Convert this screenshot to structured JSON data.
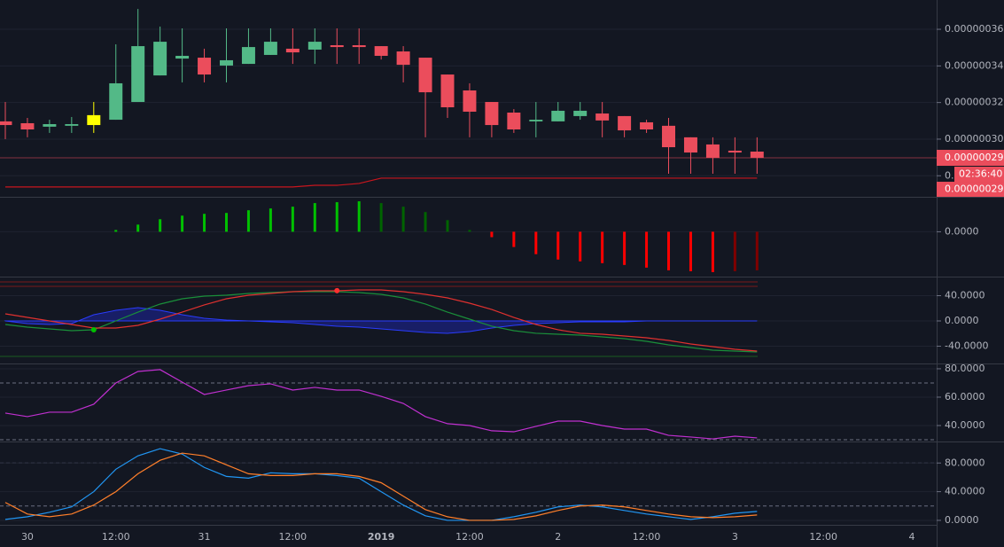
{
  "chart_data": [
    {
      "type": "candlestick",
      "x": [
        -3,
        0,
        3,
        6,
        9,
        12,
        15,
        18,
        21,
        24,
        27,
        30,
        33,
        36,
        39,
        42,
        45,
        48,
        51,
        54,
        57,
        60,
        63,
        66,
        69,
        72,
        75,
        78,
        81,
        84,
        87,
        90,
        93,
        96,
        99
      ],
      "open": [
        3.097e-07,
        3.087e-07,
        3.068e-07,
        3.073e-07,
        3.077e-07,
        3.106e-07,
        3.203e-07,
        3.348e-07,
        3.44e-07,
        3.445e-07,
        3.402e-07,
        3.411e-07,
        3.46e-07,
        3.494e-07,
        3.489e-07,
        3.513e-07,
        3.513e-07,
        3.508e-07,
        3.479e-07,
        3.445e-07,
        3.353e-07,
        3.266e-07,
        3.203e-07,
        3.145e-07,
        3.097e-07,
        3.097e-07,
        3.126e-07,
        3.14e-07,
        3.126e-07,
        3.092e-07,
        3.073e-07,
        3.01e-07,
        2.971e-07,
        2.937e-07,
        2.932e-07
      ],
      "high": [
        3.203e-07,
        3.116e-07,
        3.106e-07,
        3.121e-07,
        3.203e-07,
        3.518e-07,
        3.711e-07,
        3.615e-07,
        3.605e-07,
        3.494e-07,
        3.605e-07,
        3.605e-07,
        3.605e-07,
        3.605e-07,
        3.605e-07,
        3.605e-07,
        3.605e-07,
        3.508e-07,
        3.508e-07,
        3.445e-07,
        3.353e-07,
        3.305e-07,
        3.203e-07,
        3.164e-07,
        3.203e-07,
        3.203e-07,
        3.203e-07,
        3.203e-07,
        3.126e-07,
        3.106e-07,
        3.116e-07,
        3.01e-07,
        3.01e-07,
        3.01e-07,
        3.01e-07
      ],
      "low": [
        3e-07,
        3.01e-07,
        3.034e-07,
        3.034e-07,
        3.034e-07,
        3.106e-07,
        3.203e-07,
        3.348e-07,
        3.31e-07,
        3.31e-07,
        3.31e-07,
        3.411e-07,
        3.46e-07,
        3.411e-07,
        3.411e-07,
        3.411e-07,
        3.411e-07,
        3.435e-07,
        3.31e-07,
        3.01e-07,
        3.116e-07,
        3.01e-07,
        3.01e-07,
        3.034e-07,
        3.01e-07,
        3.097e-07,
        3.106e-07,
        3.01e-07,
        3.01e-07,
        3.034e-07,
        2.811e-07,
        2.811e-07,
        2.811e-07,
        2.811e-07,
        2.811e-07
      ],
      "close": [
        3.077e-07,
        3.053e-07,
        3.082e-07,
        3.082e-07,
        3.131e-07,
        3.305e-07,
        3.508e-07,
        3.532e-07,
        3.455e-07,
        3.353e-07,
        3.431e-07,
        3.503e-07,
        3.532e-07,
        3.474e-07,
        3.532e-07,
        3.503e-07,
        3.503e-07,
        3.455e-07,
        3.406e-07,
        3.256e-07,
        3.174e-07,
        3.15e-07,
        3.077e-07,
        3.053e-07,
        3.106e-07,
        3.155e-07,
        3.155e-07,
        3.102e-07,
        3.048e-07,
        3.053e-07,
        2.956e-07,
        2.927e-07,
        2.898e-07,
        2.927e-07,
        2.898e-07
      ],
      "up_color": "#53b987",
      "down_color": "#eb4d5c",
      "highlight_index": 4,
      "highlight_color": "#ffff00",
      "series": [
        {
          "color": "#c8161e",
          "values": [
            2.739e-07,
            2.739e-07,
            2.739e-07,
            2.739e-07,
            2.739e-07,
            2.739e-07,
            2.739e-07,
            2.739e-07,
            2.739e-07,
            2.739e-07,
            2.739e-07,
            2.739e-07,
            2.739e-07,
            2.739e-07,
            2.748e-07,
            2.748e-07,
            2.758e-07,
            2.787e-07,
            2.787e-07,
            2.787e-07,
            2.787e-07,
            2.787e-07,
            2.787e-07,
            2.787e-07,
            2.787e-07,
            2.787e-07,
            2.787e-07,
            2.787e-07,
            2.787e-07,
            2.787e-07,
            2.787e-07,
            2.787e-07,
            2.787e-07,
            2.787e-07,
            2.787e-07
          ]
        }
      ],
      "ylim": [
        2.685e-07,
        3.76e-07
      ],
      "yticks": [
        {
          "value": 2.8e-07,
          "label": "0.0"
        },
        {
          "value": 3e-07,
          "label": "0.00000030"
        },
        {
          "value": 3.2e-07,
          "label": "0.00000032"
        },
        {
          "value": 3.4e-07,
          "label": "0.00000034"
        },
        {
          "value": 3.6e-07,
          "label": "0.00000036"
        }
      ],
      "xlim": [
        -3.72,
        123.37
      ],
      "xticks": [
        {
          "value": 0,
          "label": "30"
        },
        {
          "value": 12,
          "label": "12:00"
        },
        {
          "value": 24,
          "label": "31"
        },
        {
          "value": 36,
          "label": "12:00"
        },
        {
          "value": 48,
          "label": "2019",
          "bold": true
        },
        {
          "value": 60,
          "label": "12:00"
        },
        {
          "value": 72,
          "label": "2"
        },
        {
          "value": 84,
          "label": "12:00"
        },
        {
          "value": 96,
          "label": "3"
        },
        {
          "value": 108,
          "label": "12:00"
        },
        {
          "value": 120,
          "label": "4"
        }
      ],
      "last_price": {
        "value": 2.898e-07,
        "label": "0.00000029"
      },
      "countdown": "02:36:40",
      "line_last_label": "0.00000029",
      "grid": true
    },
    {
      "type": "histogram",
      "values": [
        0,
        0,
        0,
        0,
        0,
        2e-10,
        8e-10,
        1.4e-09,
        1.8e-09,
        2e-09,
        2.1e-09,
        2.4e-09,
        2.6e-09,
        2.8e-09,
        3.2e-09,
        3.3e-09,
        3.4e-09,
        3.2e-09,
        2.8e-09,
        2.2e-09,
        1.3e-09,
        2e-10,
        -6e-10,
        -1.7e-09,
        -2.5e-09,
        -3.1e-09,
        -3.3e-09,
        -3.5e-09,
        -3.7e-09,
        -4e-09,
        -4.3e-09,
        -4.4e-09,
        -4.5e-09,
        -4.4e-09,
        -4.3e-09
      ],
      "colors": {
        "up_rising": "#00c000",
        "up_falling": "#006400",
        "down_falling": "#ff0000",
        "down_rising": "#800000"
      },
      "ylim": [
        -5e-09,
        3.8e-09
      ],
      "yticks": [
        {
          "value": 0,
          "label": "0.0000"
        }
      ],
      "grid": true
    },
    {
      "type": "line",
      "series": [
        {
          "style": "area",
          "color": "#2a3cff",
          "fill": "#1a1f6e",
          "values": [
            0,
            -4.2,
            -5.6,
            -4.2,
            9.8,
            16.8,
            21.1,
            16.8,
            9.8,
            4.2,
            1.4,
            0,
            -1.4,
            -2.8,
            -5.6,
            -8.4,
            -9.8,
            -12.6,
            -15.4,
            -18.2,
            -19.6,
            -16.8,
            -11.2,
            -7.0,
            -4.2,
            -2.8,
            -1.4,
            -1.4,
            -1.4,
            0,
            0,
            0,
            0,
            0,
            0
          ]
        },
        {
          "color": "#1a8f3a",
          "values": [
            -5.6,
            -9.8,
            -12.6,
            -15.4,
            -14.0,
            0,
            14.0,
            26.7,
            35.1,
            39.3,
            40.7,
            43.5,
            44.9,
            46.3,
            46.3,
            46.3,
            44.9,
            42.1,
            36.5,
            26.7,
            14.0,
            2.8,
            -8.4,
            -15.4,
            -19.6,
            -21.1,
            -22.5,
            -25.3,
            -28.1,
            -32.3,
            -37.9,
            -42.1,
            -46.3,
            -47.7,
            -49.1
          ]
        },
        {
          "color": "#e0312f",
          "values": [
            11.2,
            5.6,
            0,
            -5.6,
            -11.2,
            -11.2,
            -7.0,
            2.8,
            14.0,
            25.3,
            35.1,
            40.7,
            43.5,
            46.3,
            47.7,
            47.7,
            49.1,
            49.1,
            46.3,
            42.1,
            36.5,
            28.1,
            18.2,
            5.6,
            -5.6,
            -14.0,
            -19.6,
            -21.1,
            -23.9,
            -26.7,
            -30.9,
            -36.5,
            -40.7,
            -44.9,
            -47.7
          ]
        }
      ],
      "hlines": [
        {
          "value": 61.8,
          "color": "#7a1a1a"
        },
        {
          "value": 54.7,
          "color": "#7a1a1a"
        },
        {
          "value": -56.1,
          "color": "#1b5e20"
        }
      ],
      "markers": [
        {
          "x": 9,
          "y": -14.0,
          "color": "#00c000"
        },
        {
          "x": 42,
          "y": 48,
          "color": "#ff3030"
        }
      ],
      "ylim": [
        -67.4,
        68.8
      ],
      "yticks": [
        {
          "value": 40,
          "label": "40.0000"
        },
        {
          "value": 0,
          "label": "0.0000"
        },
        {
          "value": -40,
          "label": "-40.0000"
        }
      ],
      "grid": true
    },
    {
      "type": "line",
      "series": [
        {
          "color": "#c030d0",
          "values": [
            48.8,
            46.3,
            49.4,
            49.4,
            55.0,
            70.0,
            78.1,
            79.4,
            70.6,
            61.9,
            65.0,
            68.1,
            69.4,
            65.0,
            66.9,
            65.0,
            65.0,
            60.6,
            55.6,
            46.3,
            41.3,
            40.0,
            36.3,
            35.6,
            39.4,
            43.1,
            43.1,
            40.0,
            37.5,
            37.5,
            33.1,
            31.9,
            30.6,
            32.5,
            31.3
          ]
        }
      ],
      "band": [
        30,
        70
      ],
      "band_color": "#2a1a3f",
      "ylim": [
        28.75,
        83.1
      ],
      "yticks": [
        {
          "value": 80,
          "label": "80.0000"
        },
        {
          "value": 60,
          "label": "60.0000"
        },
        {
          "value": 40,
          "label": "40.0000"
        }
      ],
      "grid": true
    },
    {
      "type": "line",
      "series": [
        {
          "color": "#2196f3",
          "values": [
            1.3,
            5,
            11.3,
            18.8,
            40,
            71.3,
            90,
            100,
            92.5,
            73.8,
            61.3,
            58.8,
            66.3,
            65,
            65,
            62.5,
            58.8,
            40,
            21.3,
            6.3,
            0,
            0,
            0,
            5,
            11.3,
            18.8,
            21.3,
            18.8,
            13.8,
            8.8,
            5,
            1.3,
            5,
            10,
            12.5
          ]
        },
        {
          "color": "#ff7f2a",
          "values": [
            25,
            8.8,
            5,
            8.8,
            21.3,
            40,
            65,
            83.8,
            93.8,
            90,
            77.5,
            65,
            62.5,
            62.5,
            65,
            65,
            61.3,
            52.5,
            33.8,
            15,
            5,
            0,
            0,
            1.3,
            6.3,
            13.8,
            20,
            21.3,
            18.8,
            13.8,
            8.8,
            5,
            3.8,
            5,
            7.5
          ]
        }
      ],
      "band": [
        20,
        80
      ],
      "band_color": "#321d55",
      "ylim": [
        -6.25,
        108.75
      ],
      "yticks": [
        {
          "value": 80,
          "label": "80.0000"
        },
        {
          "value": 40,
          "label": "40.0000"
        },
        {
          "value": 0,
          "label": "0.0000"
        }
      ],
      "grid": true
    }
  ]
}
